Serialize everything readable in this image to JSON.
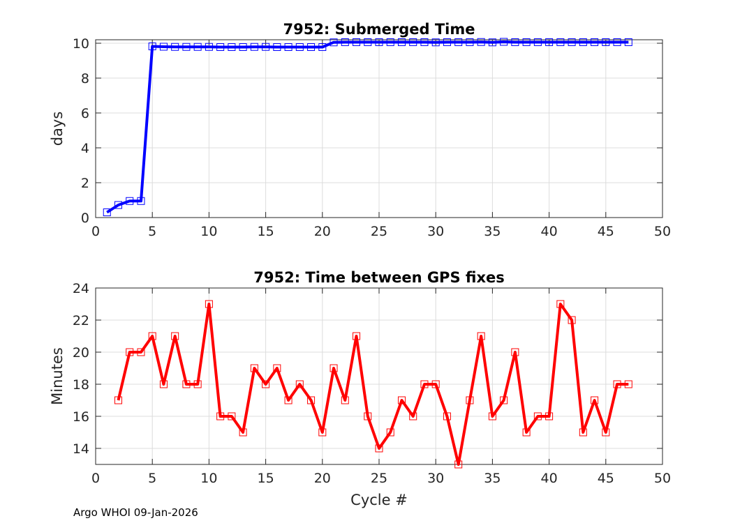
{
  "footer": "Argo WHOI 09-Jan-2026",
  "chart_data": [
    {
      "type": "line",
      "title": "7952: Submerged Time",
      "xlabel": "",
      "ylabel": "days",
      "xlim": [
        0,
        50
      ],
      "ylim": [
        0,
        10.2
      ],
      "xticks": [
        0,
        5,
        10,
        15,
        20,
        25,
        30,
        35,
        40,
        45,
        50
      ],
      "yticks": [
        0,
        2,
        4,
        6,
        8,
        10
      ],
      "grid": true,
      "color": "#0000ff",
      "marker": "square",
      "series": [
        {
          "name": "Submerged Time",
          "x": [
            1,
            2,
            3,
            4,
            5,
            6,
            7,
            8,
            9,
            10,
            11,
            12,
            13,
            14,
            15,
            16,
            17,
            18,
            19,
            20,
            21,
            22,
            23,
            24,
            25,
            26,
            27,
            28,
            29,
            30,
            31,
            32,
            33,
            34,
            35,
            36,
            37,
            38,
            39,
            40,
            41,
            42,
            43,
            44,
            45,
            46,
            47
          ],
          "values": [
            0.3,
            0.72,
            0.95,
            0.95,
            9.82,
            9.8,
            9.79,
            9.79,
            9.79,
            9.79,
            9.78,
            9.78,
            9.78,
            9.79,
            9.79,
            9.78,
            9.78,
            9.78,
            9.78,
            9.78,
            10.05,
            10.06,
            10.06,
            10.06,
            10.06,
            10.06,
            10.06,
            10.06,
            10.06,
            10.05,
            10.06,
            10.06,
            10.06,
            10.07,
            10.05,
            10.08,
            10.06,
            10.06,
            10.06,
            10.06,
            10.06,
            10.06,
            10.06,
            10.06,
            10.06,
            10.06,
            10.06
          ]
        }
      ]
    },
    {
      "type": "line",
      "title": "7952: Time between GPS fixes",
      "xlabel": "Cycle #",
      "ylabel": "Minutes",
      "xlim": [
        0,
        50
      ],
      "ylim": [
        13,
        24
      ],
      "xticks": [
        0,
        5,
        10,
        15,
        20,
        25,
        30,
        35,
        40,
        45,
        50
      ],
      "yticks": [
        14,
        16,
        18,
        20,
        22,
        24
      ],
      "grid": true,
      "color": "#ff0000",
      "marker": "square",
      "series": [
        {
          "name": "Time between GPS fixes",
          "x": [
            2,
            3,
            4,
            5,
            6,
            7,
            8,
            9,
            10,
            11,
            12,
            13,
            14,
            15,
            16,
            17,
            18,
            19,
            20,
            21,
            22,
            23,
            24,
            25,
            26,
            27,
            28,
            29,
            30,
            31,
            32,
            33,
            34,
            35,
            36,
            37,
            38,
            39,
            40,
            41,
            42,
            43,
            44,
            45,
            46,
            47
          ],
          "values": [
            17,
            20,
            20,
            21,
            18,
            21,
            18,
            18,
            23,
            16,
            16,
            15,
            19,
            18,
            19,
            17,
            18,
            17,
            15,
            19,
            17,
            21,
            16,
            14,
            15,
            17,
            16,
            18,
            18,
            16,
            13,
            17,
            21,
            16,
            17,
            20,
            15,
            16,
            16,
            23,
            22,
            15,
            17,
            15,
            18,
            18
          ]
        }
      ]
    }
  ]
}
